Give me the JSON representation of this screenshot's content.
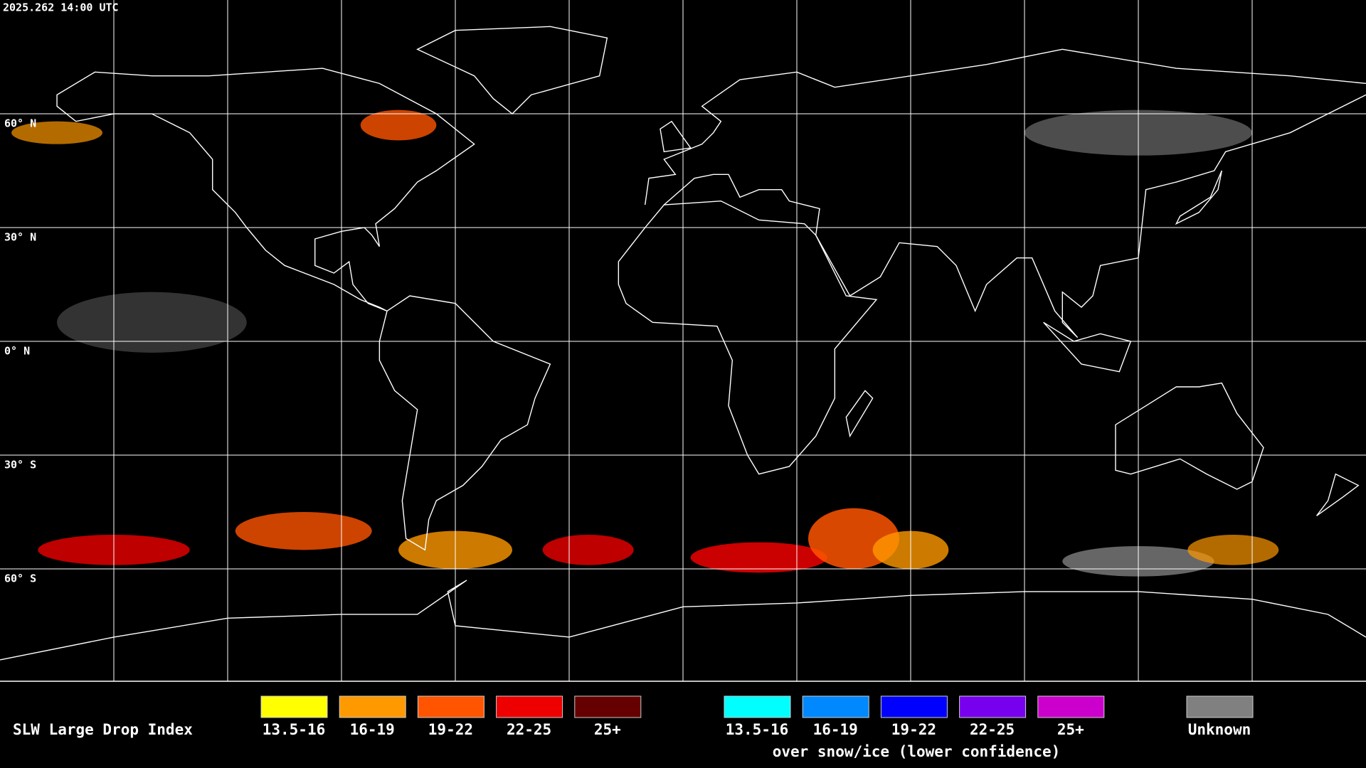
{
  "header": {
    "timestamp": "2025.262 14:00 UTC"
  },
  "map": {
    "lat_labels": [
      "60° N",
      "30° N",
      "0° N",
      "30° S",
      "60° S"
    ]
  },
  "legend": {
    "title": "SLW Large Drop Index",
    "items": [
      {
        "label": "13.5-16",
        "color": "#ffff00"
      },
      {
        "label": "16-19",
        "color": "#ff9900"
      },
      {
        "label": "19-22",
        "color": "#ff5500"
      },
      {
        "label": "22-25",
        "color": "#ee0000"
      },
      {
        "label": "25+",
        "color": "#660000"
      }
    ],
    "snow_items": [
      {
        "label": "13.5-16",
        "color": "#00ffff"
      },
      {
        "label": "16-19",
        "color": "#0088ff"
      },
      {
        "label": "19-22",
        "color": "#0000ff"
      },
      {
        "label": "22-25",
        "color": "#7700ee"
      },
      {
        "label": "25+",
        "color": "#cc00cc"
      }
    ],
    "snow_caption": "over snow/ice (lower confidence)",
    "unknown": {
      "label": "Unknown",
      "color": "#808080"
    }
  }
}
